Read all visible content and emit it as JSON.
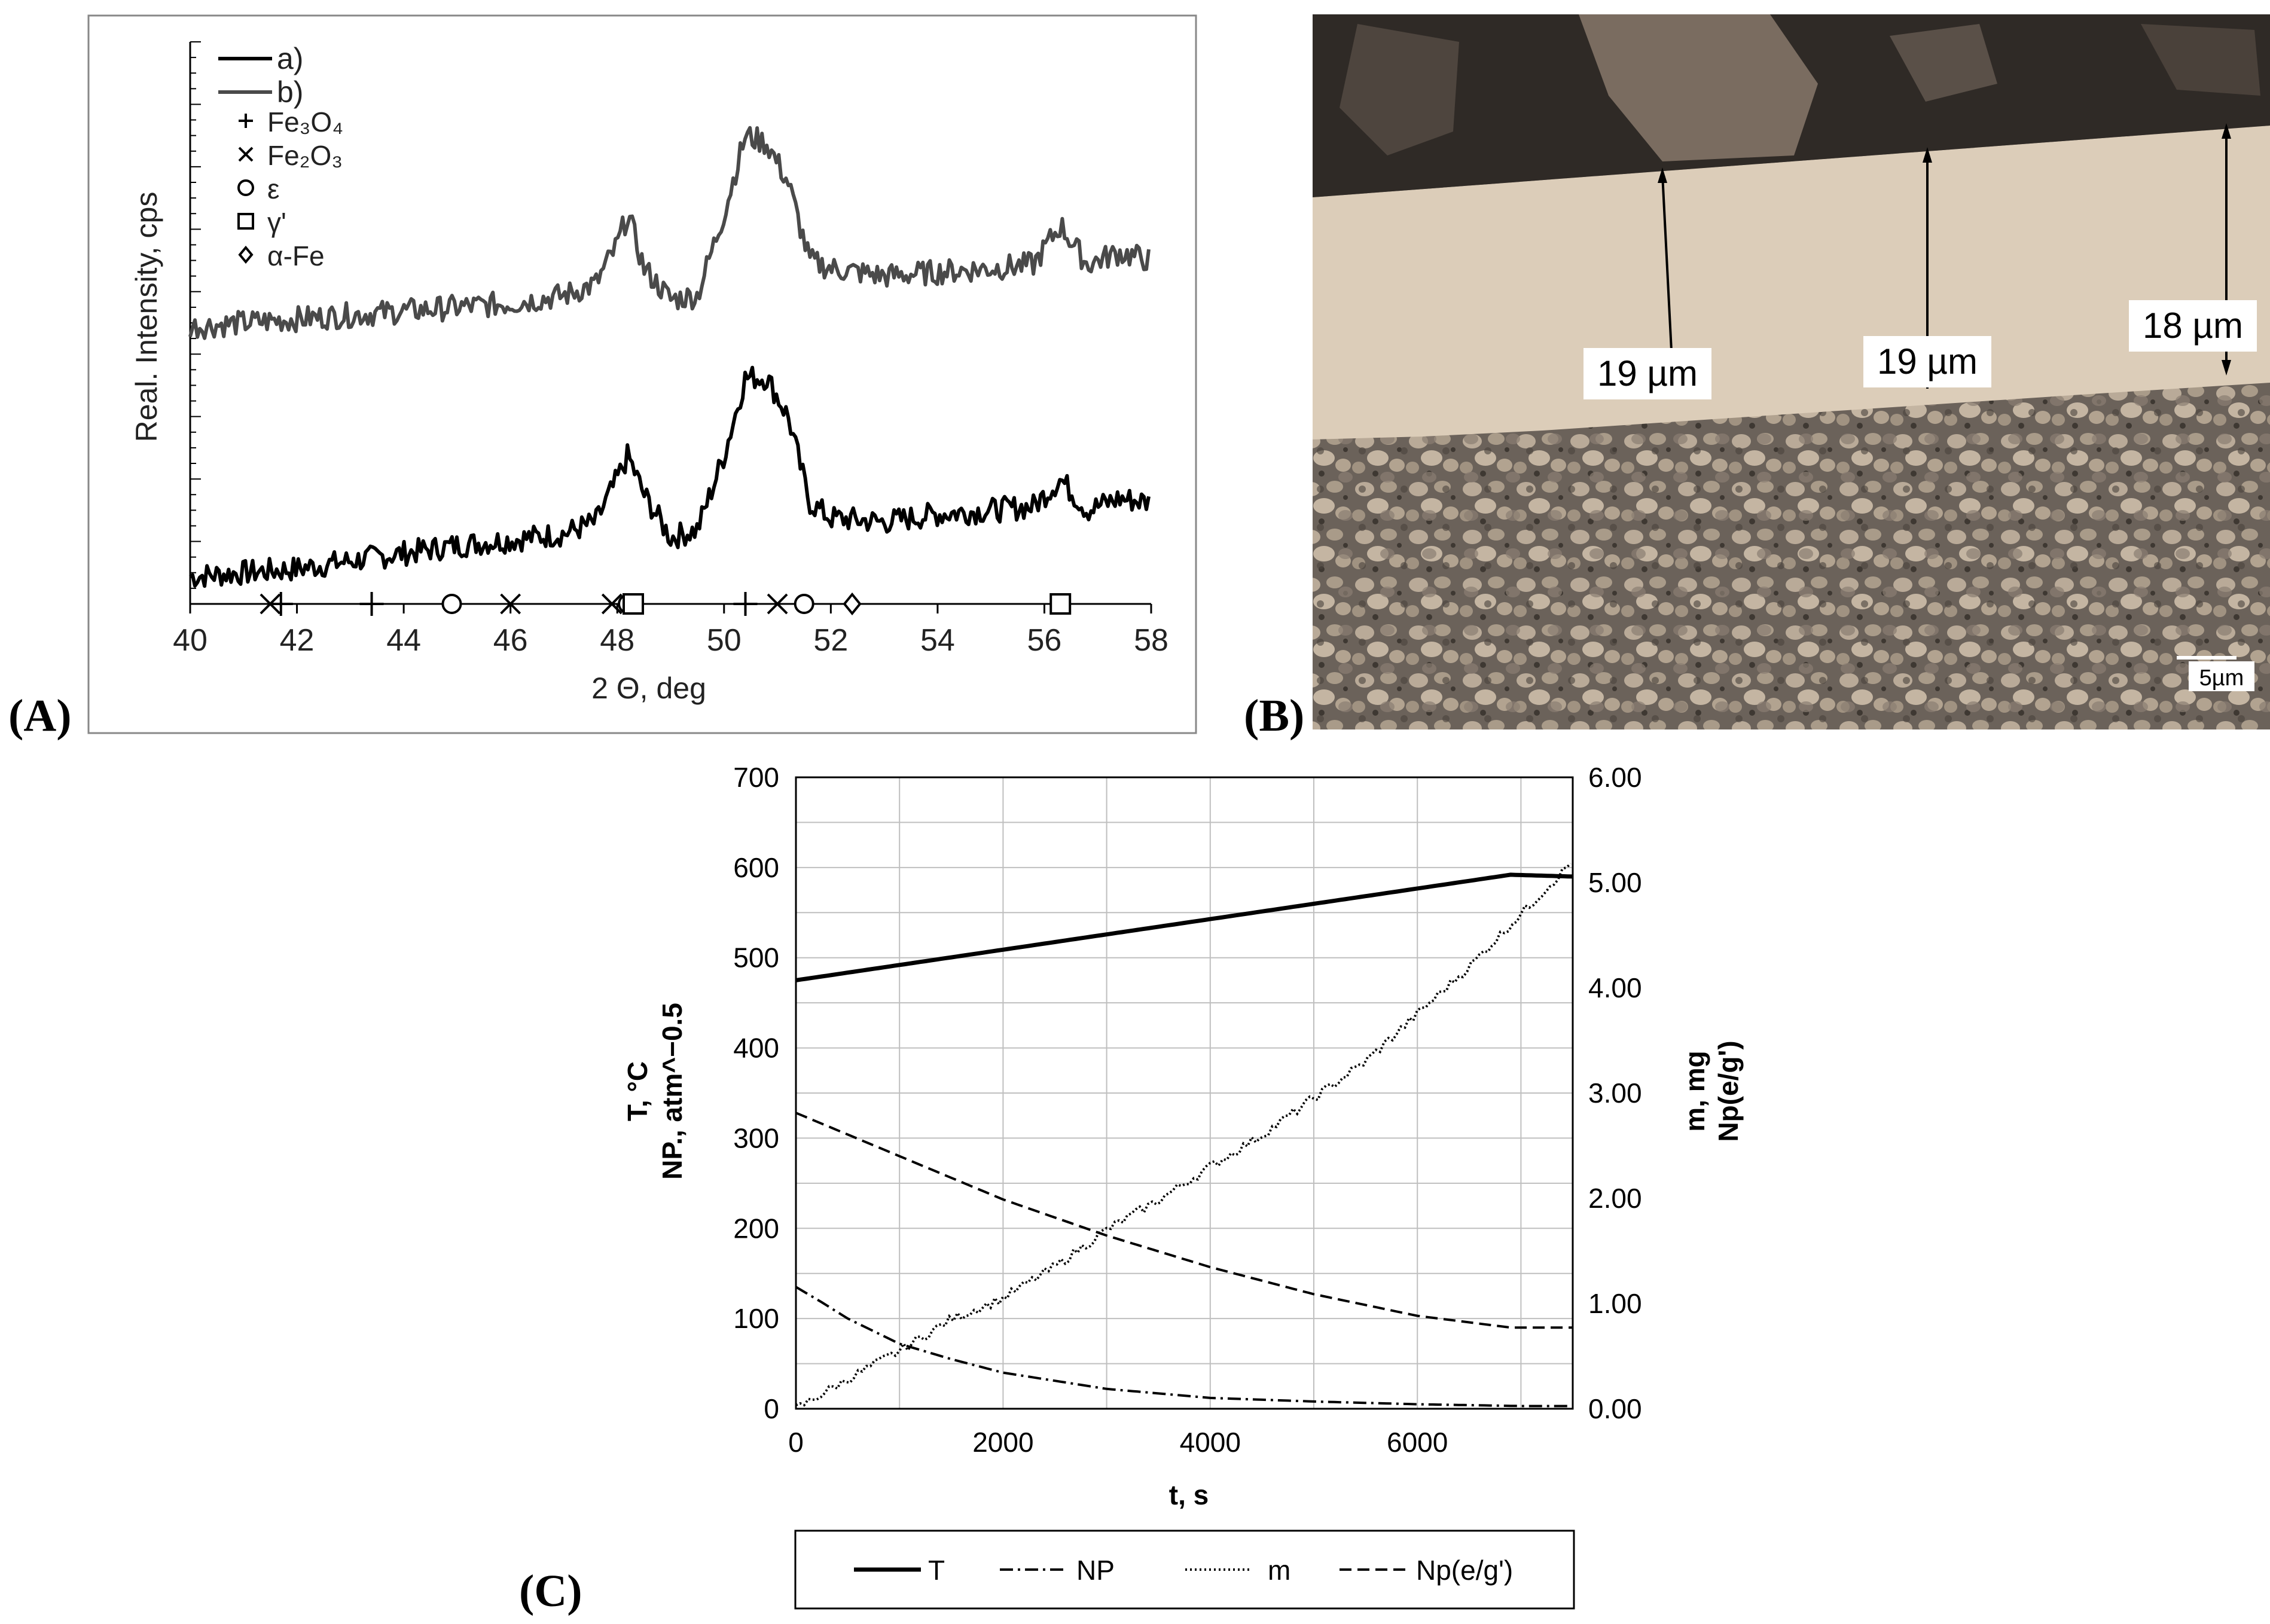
{
  "panel_labels": {
    "a": "A",
    "b": "B",
    "c": "C"
  },
  "colors": {
    "series_a": "#000000",
    "series_b": "#4a4a4a",
    "axis": "#000000",
    "grid": "#bfbfbf",
    "micro_coating": "#dccdb9",
    "micro_resin": "#2f2a26"
  },
  "micrograph": {
    "measurements": [
      "19 µm",
      "19 µm",
      "18 µm"
    ],
    "scale_bar_label": "5µm"
  },
  "chart_data": [
    {
      "type": "line",
      "xlabel": "2 Θ, deg",
      "ylabel": "Real. Intensity, cps",
      "xlim": [
        40,
        58
      ],
      "xticks": [
        40,
        42,
        44,
        46,
        48,
        50,
        52,
        54,
        56,
        58
      ],
      "y_tick_labels": "none",
      "grid": false,
      "legend_position": "top-left",
      "series": [
        {
          "name": "a)",
          "style": "solid-black",
          "x": [
            40,
            41,
            42,
            43,
            44,
            45,
            46,
            47,
            47.6,
            48,
            48.2,
            48.5,
            49,
            49.5,
            50,
            50.4,
            50.8,
            51.2,
            51.6,
            52,
            53,
            54,
            55,
            55.8,
            56.3,
            56.8,
            57.4,
            58
          ],
          "y": [
            0.35,
            0.4,
            0.45,
            0.55,
            0.65,
            0.75,
            0.82,
            0.9,
            1.05,
            1.6,
            1.9,
            1.4,
            0.85,
            0.95,
            1.9,
            2.9,
            2.9,
            2.4,
            1.3,
            1.1,
            1.05,
            1.15,
            1.2,
            1.25,
            1.6,
            1.2,
            1.35,
            1.3
          ]
        },
        {
          "name": "b)",
          "style": "solid-gray",
          "x": [
            40,
            41,
            42,
            43,
            44,
            45,
            46,
            47,
            47.6,
            48,
            48.2,
            48.5,
            49,
            49.5,
            50,
            50.4,
            50.8,
            51.2,
            51.6,
            52,
            53,
            54,
            55,
            55.8,
            56.3,
            56.8,
            57.4,
            58
          ],
          "y": [
            3.55,
            3.6,
            3.65,
            3.7,
            3.75,
            3.8,
            3.85,
            3.95,
            4.1,
            4.6,
            5.0,
            4.3,
            3.9,
            3.95,
            5.0,
            6.0,
            5.9,
            5.4,
            4.4,
            4.3,
            4.2,
            4.25,
            4.3,
            4.35,
            4.85,
            4.35,
            4.5,
            4.4
          ]
        }
      ],
      "phase_legend": [
        {
          "marker": "+",
          "label": "Fe₃O₄"
        },
        {
          "marker": "×",
          "label": "Fe₂O₃"
        },
        {
          "marker": "○",
          "label": "ε"
        },
        {
          "marker": "□",
          "label": "γ'"
        },
        {
          "marker": "◇",
          "label": "α-Fe"
        }
      ],
      "phase_markers": [
        {
          "x": 41.5,
          "marker": "×"
        },
        {
          "x": 41.7,
          "marker": "+"
        },
        {
          "x": 43.4,
          "marker": "+"
        },
        {
          "x": 44.9,
          "marker": "○"
        },
        {
          "x": 46.0,
          "marker": "×"
        },
        {
          "x": 47.9,
          "marker": "×"
        },
        {
          "x": 48.2,
          "marker": "○"
        },
        {
          "x": 48.3,
          "marker": "□"
        },
        {
          "x": 50.4,
          "marker": "+"
        },
        {
          "x": 51.0,
          "marker": "×"
        },
        {
          "x": 51.5,
          "marker": "○"
        },
        {
          "x": 52.4,
          "marker": "◇"
        },
        {
          "x": 56.3,
          "marker": "□"
        }
      ]
    },
    {
      "type": "line",
      "xlabel": "t, s",
      "ylabel_left": [
        "T, °C",
        "NP., atm^−0.5"
      ],
      "ylabel_right": [
        "m, mg",
        "Np(e/g')"
      ],
      "xlim": [
        0,
        7500
      ],
      "xticks": [
        0,
        2000,
        4000,
        6000
      ],
      "ylim_left": [
        0,
        700
      ],
      "yticks_left": [
        0,
        100,
        200,
        300,
        400,
        500,
        600,
        700
      ],
      "ylim_right": [
        0,
        6
      ],
      "yticks_right": [
        "0.00",
        "1.00",
        "2.00",
        "3.00",
        "4.00",
        "5.00",
        "6.00"
      ],
      "grid": true,
      "legend_position": "bottom",
      "series": [
        {
          "name": "T",
          "axis": "left",
          "style": "solid",
          "x": [
            0,
            6900,
            7500
          ],
          "y": [
            475,
            592,
            590
          ]
        },
        {
          "name": "NP",
          "axis": "left",
          "style": "dash-dot",
          "x": [
            0,
            250,
            500,
            1000,
            1500,
            2000,
            3000,
            4000,
            5000,
            6000,
            7000,
            7500
          ],
          "y": [
            135,
            118,
            100,
            72,
            55,
            40,
            22,
            12,
            8,
            5,
            3,
            3
          ]
        },
        {
          "name": "m",
          "axis": "right",
          "style": "dotted",
          "x": [
            0,
            500,
            1000,
            1500,
            2000,
            2500,
            3000,
            3500,
            4000,
            4500,
            5000,
            5500,
            6000,
            6500,
            7000,
            7500
          ],
          "y": [
            0.0,
            0.28,
            0.55,
            0.85,
            1.05,
            1.35,
            1.7,
            1.98,
            2.3,
            2.6,
            2.95,
            3.3,
            3.75,
            4.2,
            4.7,
            5.2
          ]
        },
        {
          "name": "Np(e/g')",
          "axis": "left",
          "style": "dashed",
          "x": [
            0,
            1000,
            2000,
            3000,
            4000,
            5000,
            6000,
            6900,
            7500
          ],
          "y": [
            328,
            280,
            232,
            192,
            157,
            127,
            103,
            90,
            90
          ]
        }
      ]
    }
  ]
}
